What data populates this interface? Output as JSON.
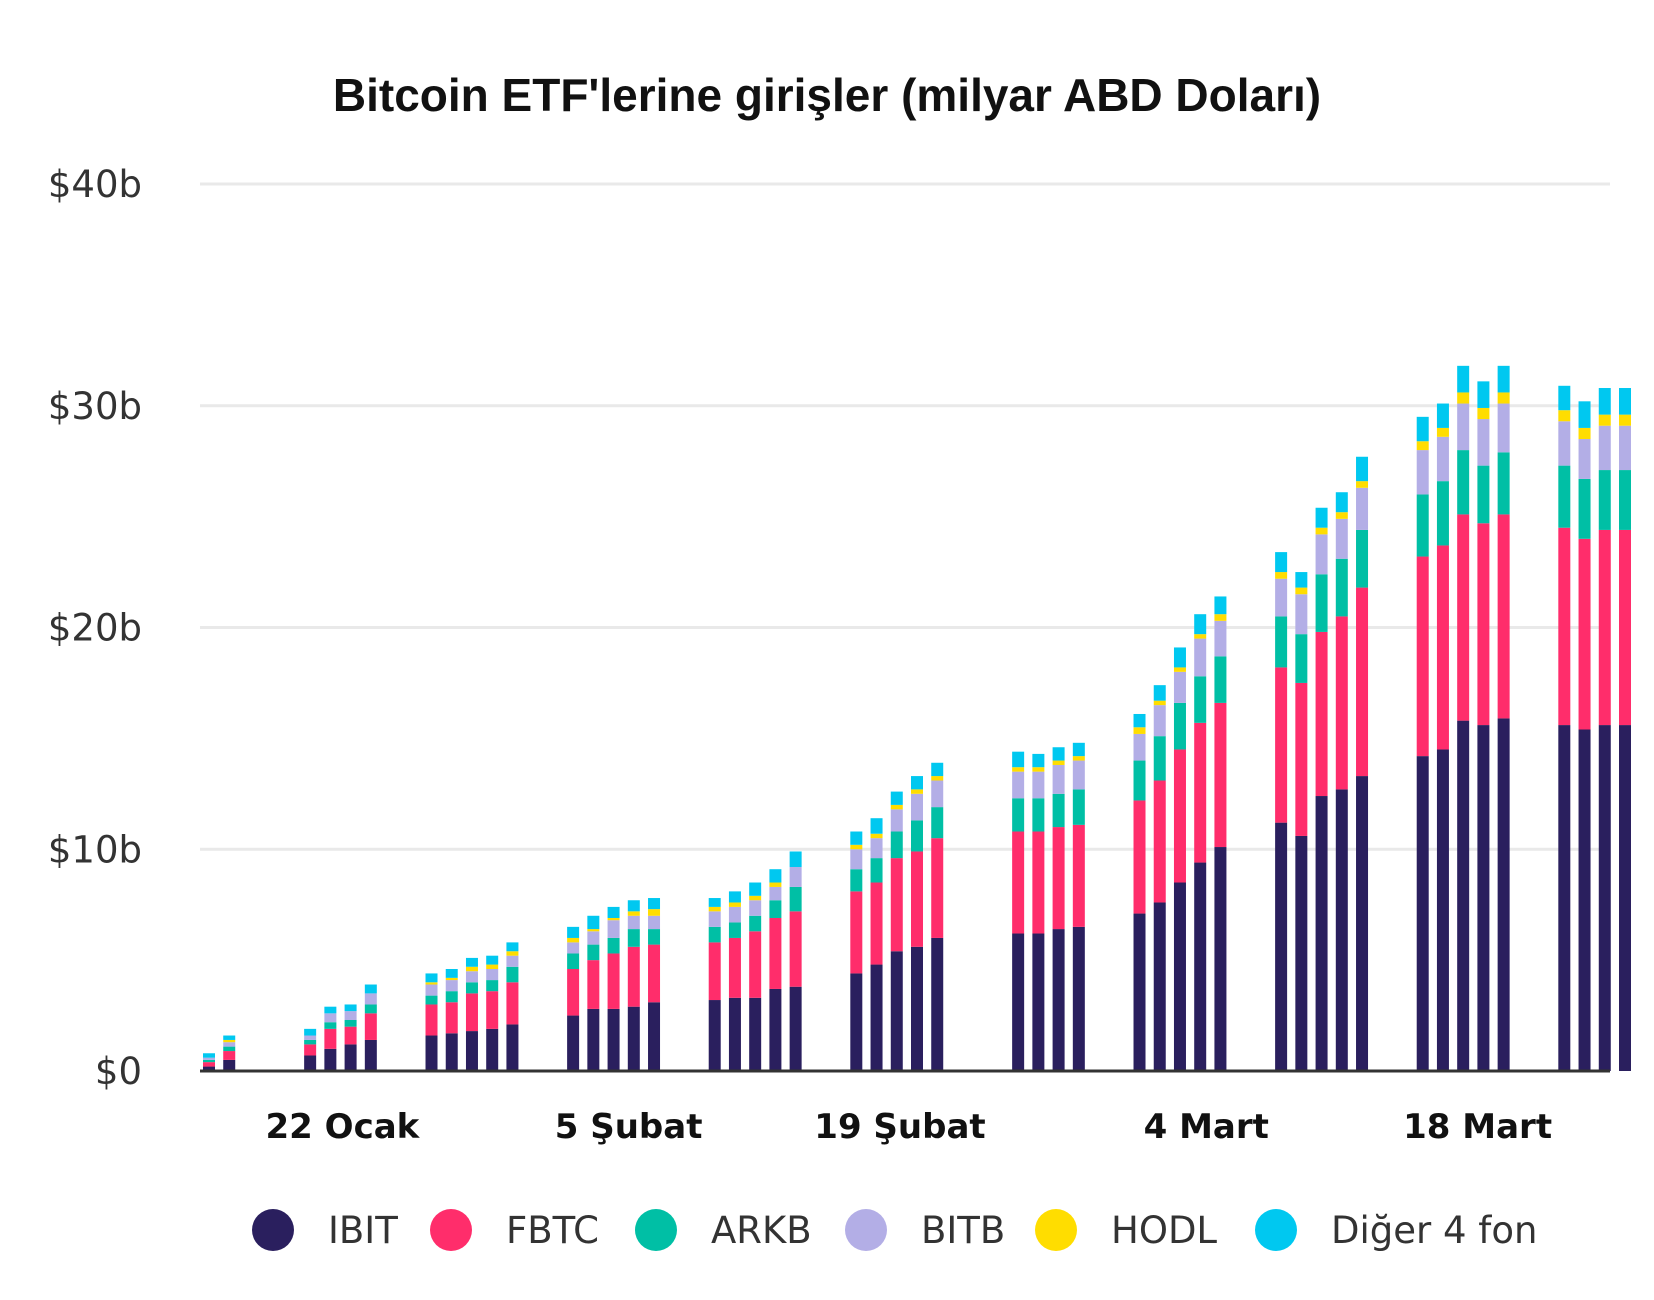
{
  "chart_data": {
    "type": "bar",
    "stacked": true,
    "title": "Bitcoin ETF'lerine girişler (milyar ABD Doları)",
    "xlabel": "",
    "ylabel": "",
    "ylim": [
      0,
      40
    ],
    "y_ticks": [
      {
        "value": 0,
        "label": "$0"
      },
      {
        "value": 10,
        "label": "$10b"
      },
      {
        "value": 20,
        "label": "$20b"
      },
      {
        "value": 30,
        "label": "$30b"
      },
      {
        "value": 40,
        "label": "$40b"
      }
    ],
    "x_tick_labels": [
      {
        "label": "22 Ocak",
        "day": 10
      },
      {
        "label": "5 Şubat",
        "day": 24
      },
      {
        "label": "19 Şubat",
        "day": 38
      },
      {
        "label": "4 Mart",
        "day": 52
      },
      {
        "label": "18 Mart",
        "day": 66
      }
    ],
    "grid": true,
    "legend_position": "bottom",
    "days": [
      0,
      1,
      5,
      6,
      7,
      8,
      11,
      12,
      13,
      14,
      15,
      18,
      19,
      20,
      21,
      22,
      25,
      26,
      27,
      28,
      29,
      32,
      33,
      34,
      35,
      36,
      40,
      41,
      42,
      43,
      46,
      47,
      48,
      49,
      50,
      53,
      54,
      55,
      56,
      57,
      60,
      61,
      62,
      63,
      64,
      67,
      68,
      69,
      70
    ],
    "series": [
      {
        "name": "IBIT",
        "color": "#2a1f5e",
        "values": [
          0.2,
          0.5,
          0.7,
          1.0,
          1.2,
          1.4,
          1.6,
          1.7,
          1.8,
          1.9,
          2.1,
          2.5,
          2.8,
          2.8,
          2.9,
          3.1,
          3.2,
          3.3,
          3.3,
          3.7,
          3.8,
          4.4,
          4.8,
          5.4,
          5.6,
          6.0,
          6.2,
          6.2,
          6.4,
          6.5,
          7.1,
          7.6,
          8.5,
          9.4,
          10.1,
          11.2,
          10.6,
          12.4,
          12.7,
          13.3,
          14.2,
          14.5,
          15.8,
          15.6,
          15.9,
          15.6,
          15.4,
          15.6,
          15.6
        ]
      },
      {
        "name": "FBTC",
        "color": "#ff2d6b",
        "values": [
          0.2,
          0.4,
          0.5,
          0.9,
          0.8,
          1.2,
          1.4,
          1.4,
          1.7,
          1.7,
          1.9,
          2.1,
          2.2,
          2.5,
          2.7,
          2.6,
          2.6,
          2.7,
          3.0,
          3.2,
          3.4,
          3.7,
          3.7,
          4.2,
          4.3,
          4.5,
          4.6,
          4.6,
          4.6,
          4.6,
          5.1,
          5.5,
          6.0,
          6.3,
          6.5,
          7.0,
          6.9,
          7.4,
          7.8,
          8.5,
          9.0,
          9.2,
          9.3,
          9.1,
          9.2,
          8.9,
          8.6,
          8.8,
          8.8
        ]
      },
      {
        "name": "ARKB",
        "color": "#00bfa5",
        "values": [
          0.1,
          0.2,
          0.2,
          0.3,
          0.3,
          0.4,
          0.4,
          0.5,
          0.5,
          0.5,
          0.7,
          0.7,
          0.7,
          0.7,
          0.8,
          0.7,
          0.7,
          0.7,
          0.7,
          0.8,
          1.1,
          1.0,
          1.1,
          1.2,
          1.4,
          1.4,
          1.5,
          1.5,
          1.5,
          1.6,
          1.8,
          2.0,
          2.1,
          2.1,
          2.1,
          2.3,
          2.2,
          2.6,
          2.6,
          2.6,
          2.8,
          2.9,
          2.9,
          2.6,
          2.8,
          2.8,
          2.7,
          2.7,
          2.7
        ]
      },
      {
        "name": "BITB",
        "color": "#b3aee6",
        "values": [
          0.1,
          0.2,
          0.2,
          0.4,
          0.4,
          0.5,
          0.5,
          0.5,
          0.5,
          0.5,
          0.5,
          0.5,
          0.6,
          0.8,
          0.6,
          0.6,
          0.7,
          0.7,
          0.7,
          0.6,
          0.9,
          0.9,
          0.9,
          1.0,
          1.2,
          1.2,
          1.2,
          1.2,
          1.3,
          1.3,
          1.2,
          1.4,
          1.4,
          1.7,
          1.6,
          1.7,
          1.8,
          1.8,
          1.8,
          1.9,
          2.0,
          2.0,
          2.1,
          2.1,
          2.2,
          2.0,
          1.8,
          2.0,
          2.0
        ]
      },
      {
        "name": "HODL",
        "color": "#ffdd00",
        "values": [
          0.0,
          0.1,
          0.0,
          0.0,
          0.0,
          0.0,
          0.1,
          0.1,
          0.2,
          0.2,
          0.2,
          0.2,
          0.1,
          0.1,
          0.2,
          0.3,
          0.2,
          0.2,
          0.2,
          0.2,
          0.0,
          0.2,
          0.2,
          0.2,
          0.2,
          0.2,
          0.2,
          0.2,
          0.2,
          0.2,
          0.3,
          0.2,
          0.2,
          0.2,
          0.3,
          0.3,
          0.3,
          0.3,
          0.3,
          0.3,
          0.4,
          0.4,
          0.5,
          0.5,
          0.5,
          0.5,
          0.5,
          0.5,
          0.5
        ]
      },
      {
        "name": "Diğer 4 fon",
        "color": "#00c8f0",
        "values": [
          0.2,
          0.2,
          0.3,
          0.3,
          0.3,
          0.4,
          0.4,
          0.4,
          0.4,
          0.4,
          0.4,
          0.5,
          0.6,
          0.5,
          0.5,
          0.5,
          0.4,
          0.5,
          0.6,
          0.6,
          0.7,
          0.6,
          0.7,
          0.6,
          0.6,
          0.6,
          0.7,
          0.6,
          0.6,
          0.6,
          0.6,
          0.7,
          0.9,
          0.9,
          0.8,
          0.9,
          0.7,
          0.9,
          0.9,
          1.1,
          1.1,
          1.1,
          1.2,
          1.2,
          1.2,
          1.1,
          1.2,
          1.2,
          1.2
        ]
      }
    ]
  }
}
